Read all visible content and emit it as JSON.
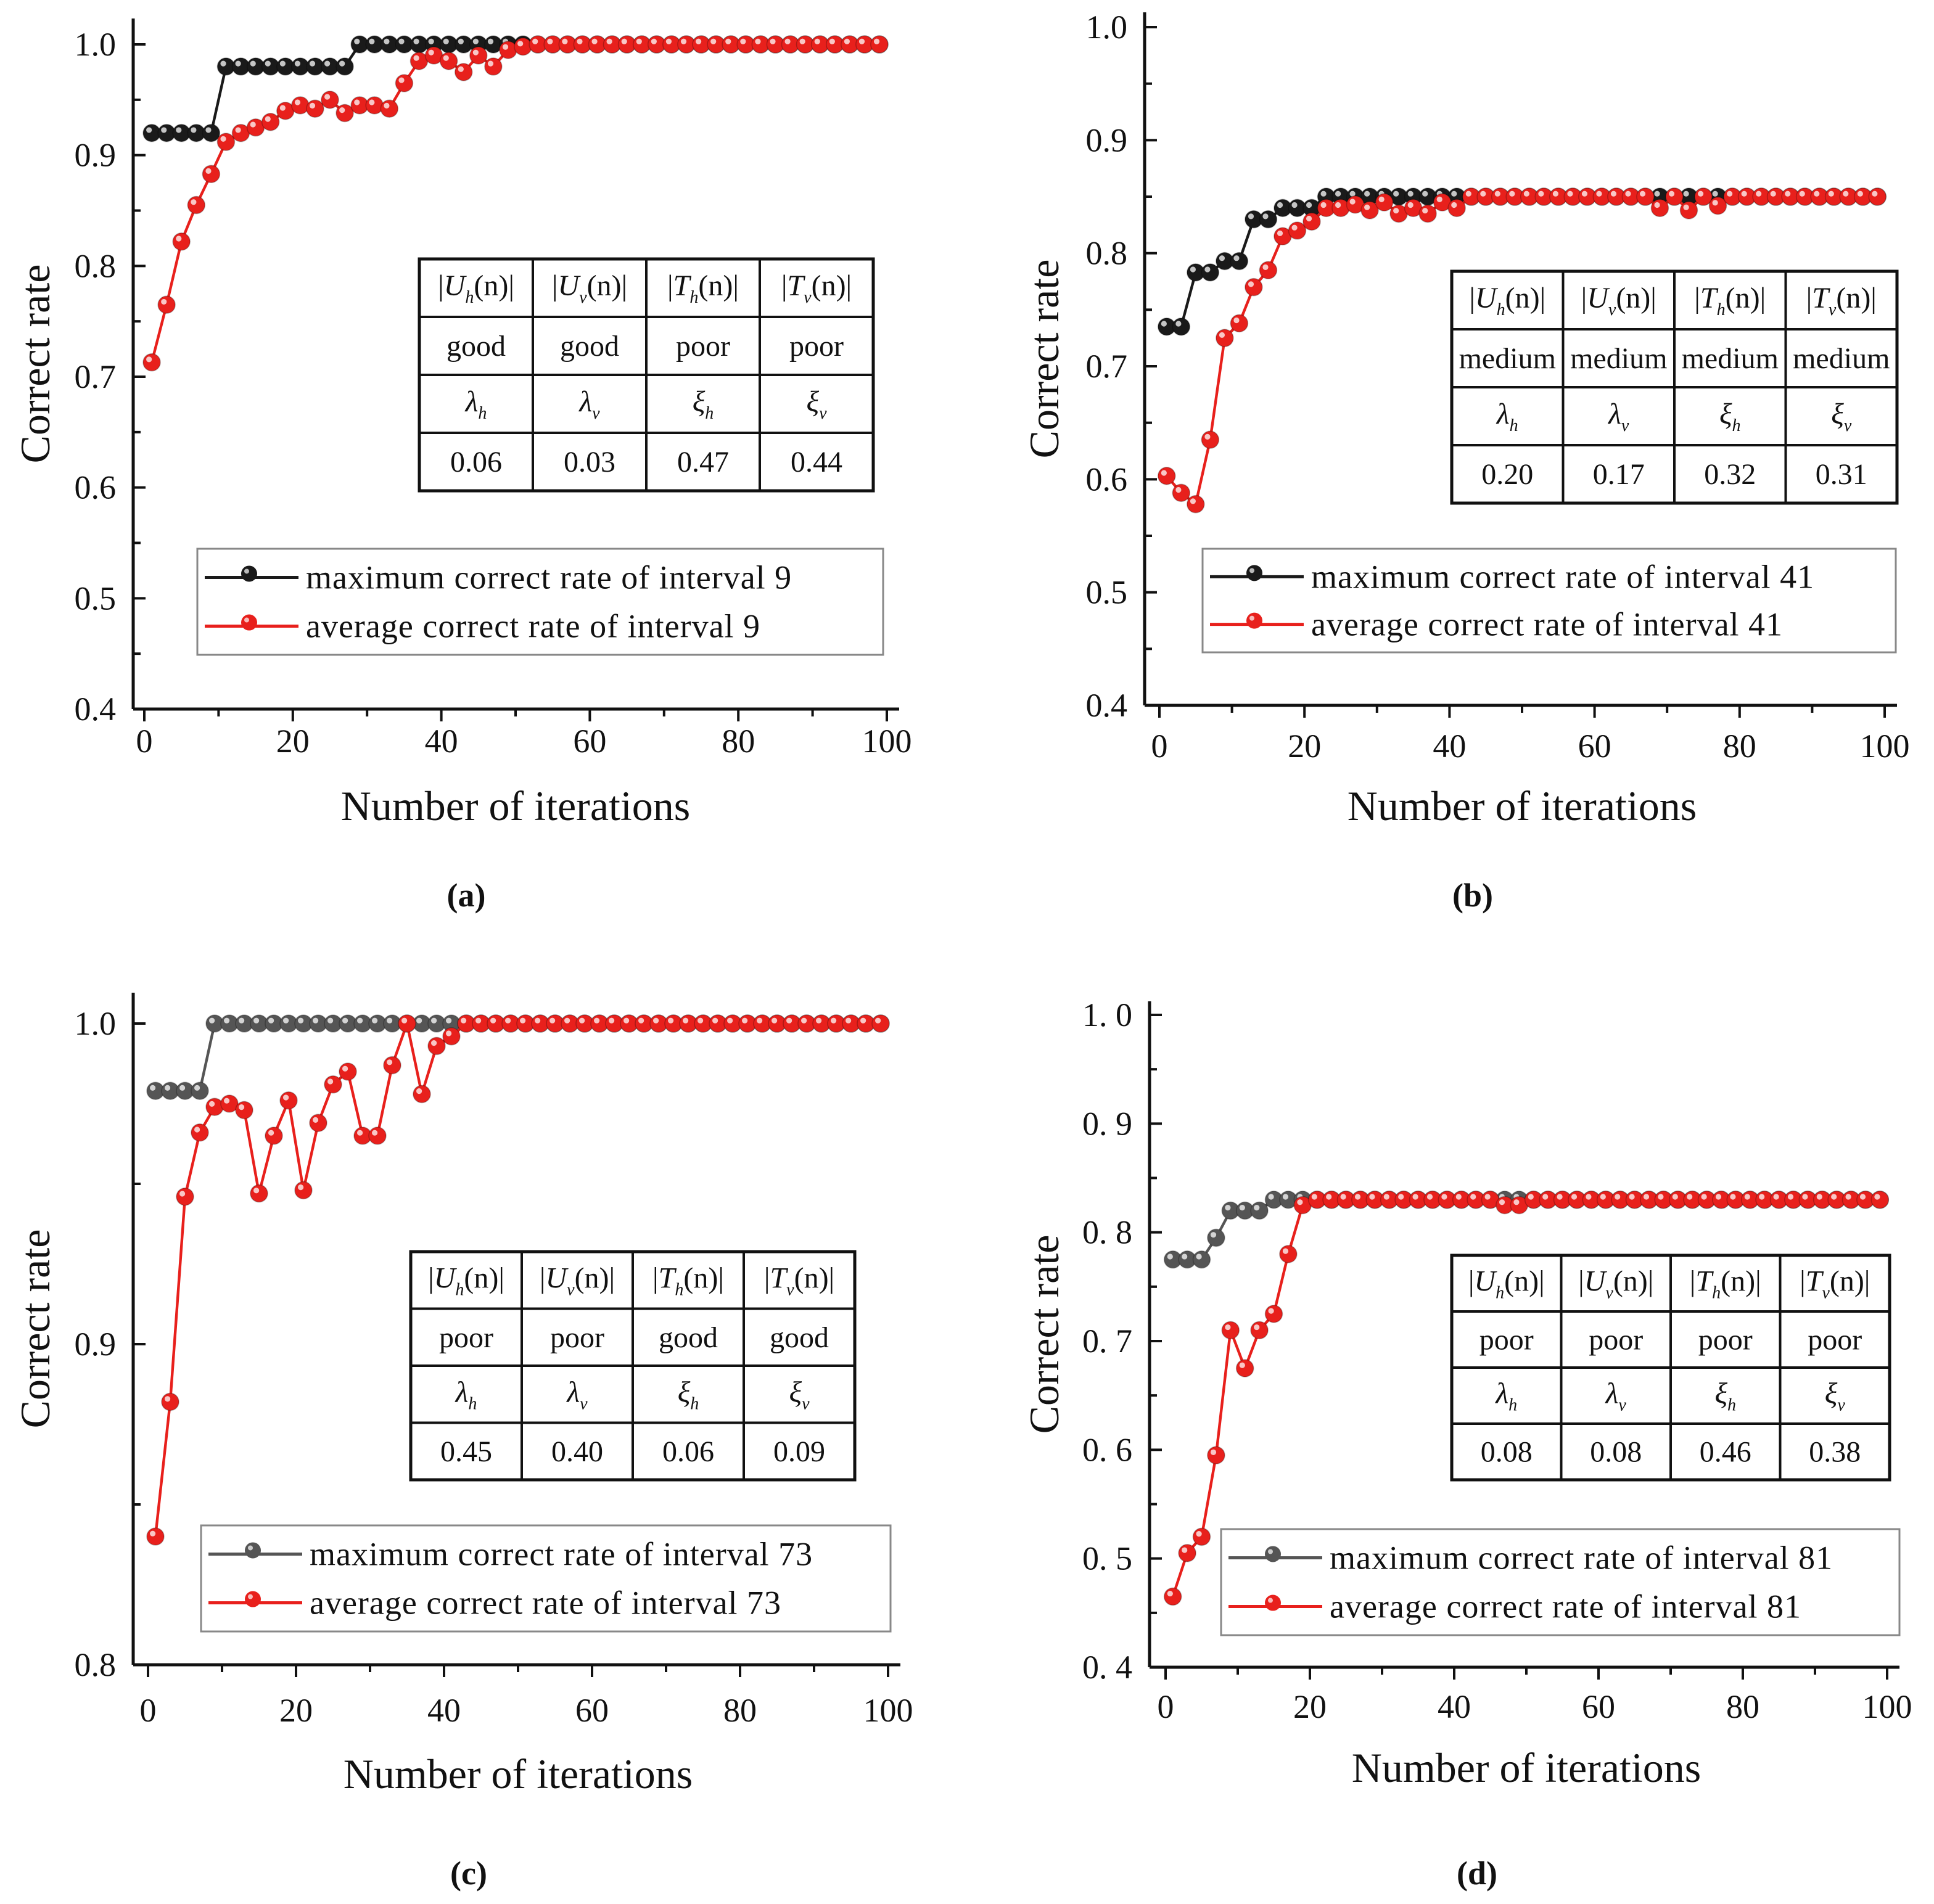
{
  "colors": {
    "max": "#1a1a1a",
    "max_c": "#555555",
    "avg": "#e8201c"
  },
  "chart_data": [
    {
      "type": "line",
      "panel_label": "(a)",
      "xlabel": "Number of iterations",
      "ylabel": "Correct rate",
      "xlim": [
        0,
        100
      ],
      "ylim": [
        0.4,
        1.0
      ],
      "xticks": [
        "0",
        "20",
        "40",
        "60",
        "80",
        "100"
      ],
      "xtick_values": [
        0,
        20,
        40,
        60,
        80,
        100
      ],
      "yticks": [
        "0.4",
        "0.5",
        "0.6",
        "0.7",
        "0.8",
        "0.9",
        "1.0"
      ],
      "ytick_values": [
        0.4,
        0.5,
        0.6,
        0.7,
        0.8,
        0.9,
        1.0
      ],
      "x": [
        1,
        3,
        5,
        7,
        9,
        11,
        13,
        15,
        17,
        19,
        21,
        23,
        25,
        27,
        29,
        31,
        33,
        35,
        37,
        39,
        41,
        43,
        45,
        47,
        49,
        51,
        53,
        55,
        57,
        59,
        61,
        63,
        65,
        67,
        69,
        71,
        73,
        75,
        77,
        79,
        81,
        83,
        85,
        87,
        89,
        91,
        93,
        95,
        97,
        99
      ],
      "series": [
        {
          "name": "maximum correct rate of interval 9",
          "color_key": "max",
          "values": [
            0.92,
            0.92,
            0.92,
            0.92,
            0.92,
            0.98,
            0.98,
            0.98,
            0.98,
            0.98,
            0.98,
            0.98,
            0.98,
            0.98,
            1,
            1,
            1,
            1,
            1,
            1,
            1,
            1,
            1,
            1,
            1,
            1,
            1,
            1,
            1,
            1,
            1,
            1,
            1,
            1,
            1,
            1,
            1,
            1,
            1,
            1,
            1,
            1,
            1,
            1,
            1,
            1,
            1,
            1,
            1,
            1
          ]
        },
        {
          "name": "average correct rate of interval 9",
          "color_key": "avg",
          "values": [
            0.713,
            0.765,
            0.822,
            0.855,
            0.883,
            0.912,
            0.92,
            0.925,
            0.93,
            0.94,
            0.945,
            0.942,
            0.95,
            0.938,
            0.945,
            0.945,
            0.942,
            0.965,
            0.985,
            0.99,
            0.985,
            0.975,
            0.99,
            0.98,
            0.995,
            0.998,
            1,
            1,
            1,
            1,
            1,
            1,
            1,
            1,
            1,
            1,
            1,
            1,
            1,
            1,
            1,
            1,
            1,
            1,
            1,
            1,
            1,
            1,
            1,
            1
          ]
        }
      ],
      "table": {
        "row1": [
          "good",
          "good",
          "poor",
          "poor"
        ],
        "row3": [
          "0.06",
          "0.03",
          "0.47",
          "0.44"
        ]
      }
    },
    {
      "type": "line",
      "panel_label": "(b)",
      "xlabel": "Number of iterations",
      "ylabel": "Correct rate",
      "xlim": [
        0,
        100
      ],
      "ylim": [
        0.4,
        1.0
      ],
      "xticks": [
        "0",
        "20",
        "40",
        "60",
        "80",
        "100"
      ],
      "xtick_values": [
        0,
        20,
        40,
        60,
        80,
        100
      ],
      "yticks": [
        "0.4",
        "0.5",
        "0.6",
        "0.7",
        "0.8",
        "0.9",
        "1.0"
      ],
      "ytick_values": [
        0.4,
        0.5,
        0.6,
        0.7,
        0.8,
        0.9,
        1.0
      ],
      "x": [
        1,
        3,
        5,
        7,
        9,
        11,
        13,
        15,
        17,
        19,
        21,
        23,
        25,
        27,
        29,
        31,
        33,
        35,
        37,
        39,
        41,
        43,
        45,
        47,
        49,
        51,
        53,
        55,
        57,
        59,
        61,
        63,
        65,
        67,
        69,
        71,
        73,
        75,
        77,
        79,
        81,
        83,
        85,
        87,
        89,
        91,
        93,
        95,
        97,
        99
      ],
      "series": [
        {
          "name": "maximum correct rate of interval 41",
          "color_key": "max",
          "values": [
            0.735,
            0.735,
            0.783,
            0.783,
            0.793,
            0.793,
            0.83,
            0.83,
            0.84,
            0.84,
            0.84,
            0.85,
            0.85,
            0.85,
            0.85,
            0.85,
            0.85,
            0.85,
            0.85,
            0.85,
            0.85,
            0.85,
            0.85,
            0.85,
            0.85,
            0.85,
            0.85,
            0.85,
            0.85,
            0.85,
            0.85,
            0.85,
            0.85,
            0.85,
            0.85,
            0.85,
            0.85,
            0.85,
            0.85,
            0.85,
            0.85,
            0.85,
            0.85,
            0.85,
            0.85,
            0.85,
            0.85,
            0.85,
            0.85,
            0.85
          ]
        },
        {
          "name": "average correct rate of interval 41",
          "color_key": "avg",
          "values": [
            0.603,
            0.588,
            0.578,
            0.635,
            0.725,
            0.738,
            0.77,
            0.785,
            0.815,
            0.82,
            0.828,
            0.84,
            0.84,
            0.843,
            0.838,
            0.845,
            0.835,
            0.84,
            0.835,
            0.845,
            0.84,
            0.85,
            0.85,
            0.85,
            0.85,
            0.85,
            0.85,
            0.85,
            0.85,
            0.85,
            0.85,
            0.85,
            0.85,
            0.85,
            0.84,
            0.85,
            0.838,
            0.85,
            0.842,
            0.85,
            0.85,
            0.85,
            0.85,
            0.85,
            0.85,
            0.85,
            0.85,
            0.85,
            0.85,
            0.85
          ]
        }
      ],
      "table": {
        "row1": [
          "medium",
          "medium",
          "medium",
          "medium"
        ],
        "row3": [
          "0.20",
          "0.17",
          "0.32",
          "0.31"
        ]
      }
    },
    {
      "type": "line",
      "panel_label": "(c)",
      "xlabel": "Number of iterations",
      "ylabel": "Correct rate",
      "xlim": [
        0,
        100
      ],
      "ylim": [
        0.8,
        1.0
      ],
      "xticks": [
        "0",
        "20",
        "40",
        "60",
        "80",
        "100"
      ],
      "xtick_values": [
        0,
        20,
        40,
        60,
        80,
        100
      ],
      "yticks": [
        "0.8",
        "0.9",
        "1.0"
      ],
      "ytick_values": [
        0.8,
        0.9,
        1.0
      ],
      "x": [
        1,
        3,
        5,
        7,
        9,
        11,
        13,
        15,
        17,
        19,
        21,
        23,
        25,
        27,
        29,
        31,
        33,
        35,
        37,
        39,
        41,
        43,
        45,
        47,
        49,
        51,
        53,
        55,
        57,
        59,
        61,
        63,
        65,
        67,
        69,
        71,
        73,
        75,
        77,
        79,
        81,
        83,
        85,
        87,
        89,
        91,
        93,
        95,
        97,
        99
      ],
      "series": [
        {
          "name": "maximum correct rate of interval 73",
          "color_key": "max_c",
          "values": [
            0.979,
            0.979,
            0.979,
            0.979,
            1,
            1,
            1,
            1,
            1,
            1,
            1,
            1,
            1,
            1,
            1,
            1,
            1,
            1,
            1,
            1,
            1,
            1,
            1,
            1,
            1,
            1,
            1,
            1,
            1,
            1,
            1,
            1,
            1,
            1,
            1,
            1,
            1,
            1,
            1,
            1,
            1,
            1,
            1,
            1,
            1,
            1,
            1,
            1,
            1,
            1
          ]
        },
        {
          "name": "average correct rate of interval 73",
          "color_key": "avg",
          "values": [
            0.84,
            0.882,
            0.946,
            0.966,
            0.974,
            0.975,
            0.973,
            0.947,
            0.965,
            0.976,
            0.948,
            0.969,
            0.981,
            0.985,
            0.965,
            0.965,
            0.987,
            1,
            0.978,
            0.993,
            0.996,
            1,
            1,
            1,
            1,
            1,
            1,
            1,
            1,
            1,
            1,
            1,
            1,
            1,
            1,
            1,
            1,
            1,
            1,
            1,
            1,
            1,
            1,
            1,
            1,
            1,
            1,
            1,
            1,
            1
          ]
        }
      ],
      "table": {
        "row1": [
          "poor",
          "poor",
          "good",
          "good"
        ],
        "row3": [
          "0.45",
          "0.40",
          "0.06",
          "0.09"
        ]
      }
    },
    {
      "type": "line",
      "panel_label": "(d)",
      "xlabel": "Number of iterations",
      "ylabel": "Correct rate",
      "xlim": [
        0,
        100
      ],
      "ylim": [
        0.4,
        1.0
      ],
      "xticks": [
        "0",
        "20",
        "40",
        "60",
        "80",
        "100"
      ],
      "xtick_values": [
        0,
        20,
        40,
        60,
        80,
        100
      ],
      "yticks": [
        "0. 4",
        "0. 5",
        "0. 6",
        "0. 7",
        "0. 8",
        "0. 9",
        "1. 0"
      ],
      "ytick_values": [
        0.4,
        0.5,
        0.6,
        0.7,
        0.8,
        0.9,
        1.0
      ],
      "x": [
        1,
        3,
        5,
        7,
        9,
        11,
        13,
        15,
        17,
        19,
        21,
        23,
        25,
        27,
        29,
        31,
        33,
        35,
        37,
        39,
        41,
        43,
        45,
        47,
        49,
        51,
        53,
        55,
        57,
        59,
        61,
        63,
        65,
        67,
        69,
        71,
        73,
        75,
        77,
        79,
        81,
        83,
        85,
        87,
        89,
        91,
        93,
        95,
        97,
        99
      ],
      "series": [
        {
          "name": "maximum correct rate of interval 81",
          "color_key": "max_c",
          "values": [
            0.775,
            0.775,
            0.775,
            0.795,
            0.82,
            0.82,
            0.82,
            0.83,
            0.83,
            0.83,
            0.83,
            0.83,
            0.83,
            0.83,
            0.83,
            0.83,
            0.83,
            0.83,
            0.83,
            0.83,
            0.83,
            0.83,
            0.83,
            0.83,
            0.83,
            0.83,
            0.83,
            0.83,
            0.83,
            0.83,
            0.83,
            0.83,
            0.83,
            0.83,
            0.83,
            0.83,
            0.83,
            0.83,
            0.83,
            0.83,
            0.83,
            0.83,
            0.83,
            0.83,
            0.83,
            0.83,
            0.83,
            0.83,
            0.83,
            0.83
          ]
        },
        {
          "name": "average correct rate of interval 81",
          "color_key": "avg",
          "values": [
            0.465,
            0.505,
            0.52,
            0.595,
            0.71,
            0.675,
            0.71,
            0.725,
            0.78,
            0.825,
            0.83,
            0.83,
            0.83,
            0.83,
            0.83,
            0.83,
            0.83,
            0.83,
            0.83,
            0.83,
            0.83,
            0.83,
            0.83,
            0.825,
            0.825,
            0.83,
            0.83,
            0.83,
            0.83,
            0.83,
            0.83,
            0.83,
            0.83,
            0.83,
            0.83,
            0.83,
            0.83,
            0.83,
            0.83,
            0.83,
            0.83,
            0.83,
            0.83,
            0.83,
            0.83,
            0.83,
            0.83,
            0.83,
            0.83,
            0.83
          ]
        }
      ],
      "table": {
        "row1": [
          "poor",
          "poor",
          "poor",
          "poor"
        ],
        "row3": [
          "0.08",
          "0.08",
          "0.46",
          "0.38"
        ]
      }
    }
  ],
  "table_header": [
    {
      "var": "U",
      "sub": "h",
      "arg": "(n)"
    },
    {
      "var": "U",
      "sub": "v",
      "arg": "(n)"
    },
    {
      "var": "T",
      "sub": "h",
      "arg": "(n)"
    },
    {
      "var": "T",
      "sub": "v",
      "arg": "(n)"
    }
  ],
  "table_symbols": [
    {
      "sym": "λ",
      "sub": "h"
    },
    {
      "sym": "λ",
      "sub": "v"
    },
    {
      "sym": "ξ",
      "sub": "h"
    },
    {
      "sym": "ξ",
      "sub": "v"
    }
  ]
}
